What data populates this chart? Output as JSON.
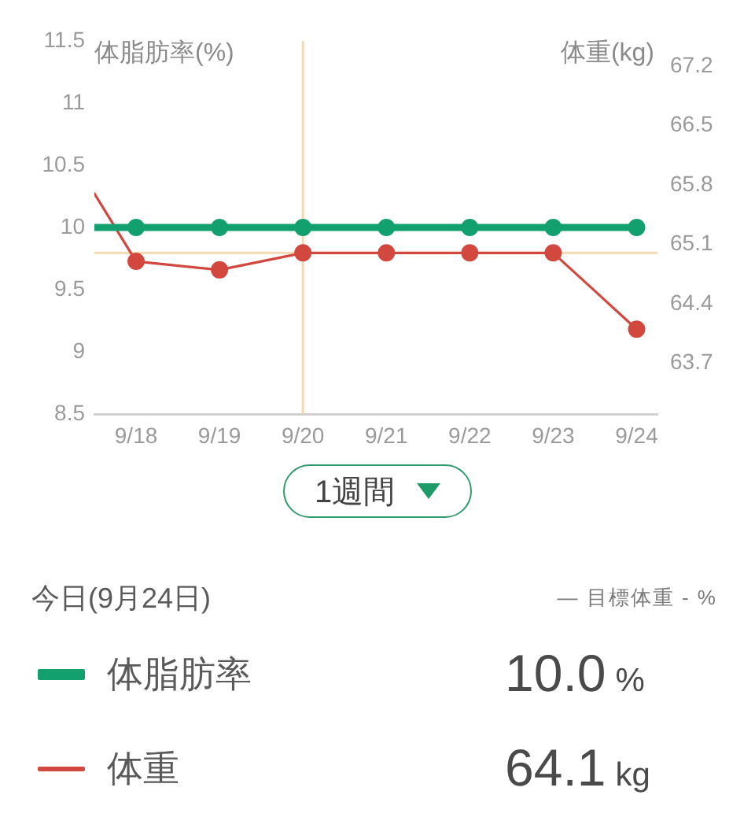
{
  "chart_data": {
    "type": "line",
    "x": [
      "--09-17T12:00",
      "--09-18",
      "--09-19",
      "--09-20",
      "--09-21",
      "--09-22",
      "--09-23",
      "--09-24"
    ],
    "xlim": [
      "--09-17T12:00",
      "--09-24T06:00"
    ],
    "xticks": [
      {
        "value": "--09-18",
        "label": "9/18"
      },
      {
        "value": "--09-19",
        "label": "9/19"
      },
      {
        "value": "--09-20",
        "label": "9/20"
      },
      {
        "value": "--09-21",
        "label": "9/21"
      },
      {
        "value": "--09-22",
        "label": "9/22"
      },
      {
        "value": "--09-23",
        "label": "9/23"
      },
      {
        "value": "--09-24",
        "label": "9/24"
      }
    ],
    "ylabel": "体脂肪率(%)",
    "y2label": "体重(kg)",
    "ylim": [
      8.5,
      11.5
    ],
    "yticks": [
      8.5,
      9,
      9.5,
      10,
      10.5,
      11,
      11.5
    ],
    "y2lim": [
      63.1,
      67.5
    ],
    "y2ticks": [
      63.7,
      64.4,
      65.1,
      65.8,
      66.5,
      67.2
    ],
    "series": [
      {
        "name": "体脂肪率",
        "color": "#13a06f",
        "values": [
          10.0,
          10.0,
          10.0,
          10.0,
          10.0,
          10.0,
          10.0,
          10.0
        ]
      },
      {
        "name": "体重",
        "color": "#d2483f",
        "axis": "y2",
        "values": [
          65.7,
          64.9,
          64.8,
          65.0,
          65.0,
          65.0,
          65.0,
          64.1
        ]
      }
    ],
    "ref_lines": [
      {
        "axis": "x",
        "value": "--09-20",
        "color": "#f3dab0"
      },
      {
        "axis": "y2",
        "value": 65.0,
        "color": "#f3dab0"
      }
    ],
    "marker": "circle",
    "grid": false,
    "legend": "bottom",
    "annotations": [
      "1週間",
      "今日(9月24日)",
      "— 目標体重 - %",
      "10.0 %",
      "64.1 kg"
    ]
  }
}
